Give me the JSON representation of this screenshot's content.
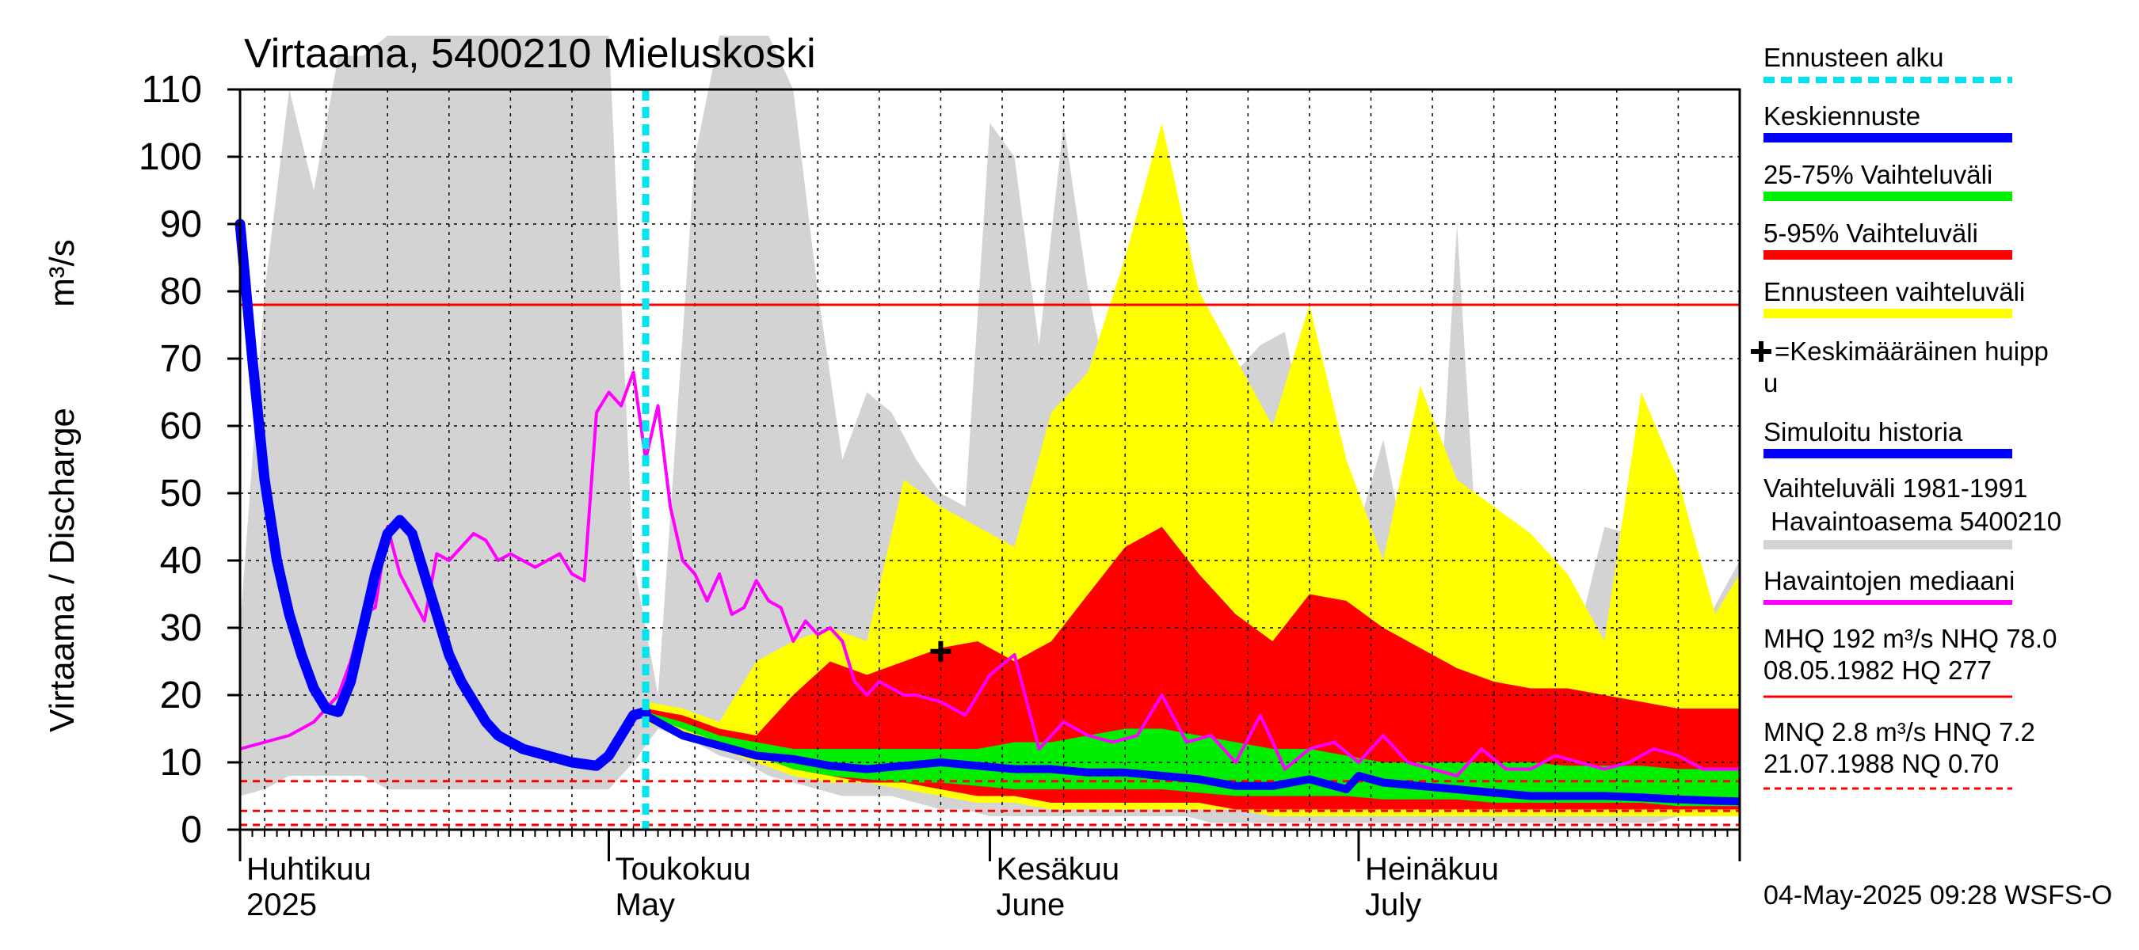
{
  "chart_data": {
    "type": "area",
    "title": "Virtaama, 5400210 Mieluskoski",
    "ylabel": "Virtaama / Discharge",
    "yunit": "m³/s",
    "ylim": [
      0,
      110
    ],
    "yticks": [
      0,
      10,
      20,
      30,
      40,
      50,
      60,
      70,
      80,
      90,
      100,
      110
    ],
    "xlim": [
      "2025-04-01",
      "2025-08-01"
    ],
    "grid": true,
    "month_labels": [
      {
        "date": "2025-04-01",
        "fi": "Huhtikuu",
        "en": "2025"
      },
      {
        "date": "2025-05-01",
        "fi": "Toukokuu",
        "en": "May"
      },
      {
        "date": "2025-06-01",
        "fi": "Kesäkuu",
        "en": "June"
      },
      {
        "date": "2025-07-01",
        "fi": "Heinäkuu",
        "en": "July"
      }
    ],
    "forecast_start": "2025-05-04",
    "mean_peak_marker": {
      "date": "2025-05-28",
      "value": 26.5
    },
    "reference_lines": [
      {
        "name": "NHQ",
        "value": 78.0,
        "style": "solid"
      },
      {
        "name": "HNQ",
        "value": 7.2,
        "style": "dashed"
      },
      {
        "name": "MNQ",
        "value": 2.8,
        "style": "dashed"
      },
      {
        "name": "NQ",
        "value": 0.7,
        "style": "dashed"
      }
    ],
    "history_range": {
      "name": "Vaihteluväli 1981-1991 Havaintoasema 5400210",
      "x": [
        "2025-04-01",
        "2025-04-03",
        "2025-04-05",
        "2025-04-07",
        "2025-04-09",
        "2025-04-11",
        "2025-04-13",
        "2025-04-15",
        "2025-04-17",
        "2025-04-19",
        "2025-04-21",
        "2025-04-25",
        "2025-04-28",
        "2025-05-01",
        "2025-05-03",
        "2025-05-05",
        "2025-05-08",
        "2025-05-10",
        "2025-05-12",
        "2025-05-14",
        "2025-05-16",
        "2025-05-18",
        "2025-05-20",
        "2025-05-22",
        "2025-05-24",
        "2025-05-26",
        "2025-05-28",
        "2025-05-30",
        "2025-06-01",
        "2025-06-03",
        "2025-06-05",
        "2025-06-07",
        "2025-06-09",
        "2025-06-11",
        "2025-06-13",
        "2025-06-15",
        "2025-06-17",
        "2025-06-19",
        "2025-06-21",
        "2025-06-23",
        "2025-06-25",
        "2025-06-27",
        "2025-06-29",
        "2025-07-01",
        "2025-07-03",
        "2025-07-05",
        "2025-07-07",
        "2025-07-09",
        "2025-07-11",
        "2025-07-13",
        "2025-07-15",
        "2025-07-17",
        "2025-07-19",
        "2025-07-21",
        "2025-07-23",
        "2025-07-25",
        "2025-07-27",
        "2025-07-29",
        "2025-08-01"
      ],
      "low": [
        5,
        6,
        8,
        8,
        8,
        8,
        6,
        6,
        6,
        6,
        6,
        6,
        6,
        6,
        10,
        15,
        13,
        11,
        10,
        8,
        7,
        6,
        5,
        5,
        5,
        4,
        3,
        3,
        2,
        2,
        2,
        2,
        2,
        2,
        2,
        2,
        2,
        1,
        1,
        1,
        1,
        1,
        1,
        1,
        1,
        1,
        1,
        1,
        1,
        1,
        1,
        1,
        1,
        1,
        1,
        1,
        2,
        2,
        2
      ],
      "high": [
        30,
        80,
        110,
        95,
        115,
        115,
        118,
        118,
        118,
        118,
        118,
        118,
        118,
        118,
        40,
        20,
        100,
        118,
        118,
        118,
        110,
        80,
        55,
        65,
        62,
        55,
        50,
        48,
        105,
        100,
        72,
        105,
        80,
        62,
        55,
        70,
        70,
        62,
        68,
        72,
        74,
        55,
        20,
        45,
        58,
        40,
        28,
        90,
        30,
        35,
        30,
        22,
        30,
        45,
        44,
        20,
        22,
        30,
        40
      ]
    },
    "series": [
      {
        "name": "Ennusteen vaihteluväli",
        "x": [
          "2025-05-04",
          "2025-05-07",
          "2025-05-10",
          "2025-05-13",
          "2025-05-16",
          "2025-05-19",
          "2025-05-22",
          "2025-05-25",
          "2025-05-28",
          "2025-05-31",
          "2025-06-03",
          "2025-06-06",
          "2025-06-09",
          "2025-06-12",
          "2025-06-15",
          "2025-06-18",
          "2025-06-21",
          "2025-06-24",
          "2025-06-27",
          "2025-06-30",
          "2025-07-03",
          "2025-07-06",
          "2025-07-09",
          "2025-07-12",
          "2025-07-15",
          "2025-07-18",
          "2025-07-21",
          "2025-07-24",
          "2025-07-27",
          "2025-07-30",
          "2025-08-01"
        ],
        "low": [
          16,
          14,
          12,
          10,
          8,
          7,
          7,
          6,
          5,
          4,
          4,
          3,
          3,
          3,
          3,
          3,
          3,
          2,
          2,
          2,
          2,
          2,
          2,
          2,
          2,
          2,
          2,
          2,
          2,
          2,
          2
        ],
        "high": [
          19,
          18,
          16,
          25,
          28,
          30,
          28,
          52,
          48,
          45,
          42,
          62,
          68,
          85,
          105,
          80,
          70,
          60,
          78,
          55,
          40,
          66,
          52,
          48,
          44,
          38,
          28,
          65,
          52,
          32,
          38
        ]
      },
      {
        "name": "5-95% Vaihteluväli",
        "x": [
          "2025-05-04",
          "2025-05-07",
          "2025-05-10",
          "2025-05-13",
          "2025-05-16",
          "2025-05-19",
          "2025-05-22",
          "2025-05-25",
          "2025-05-28",
          "2025-05-31",
          "2025-06-03",
          "2025-06-06",
          "2025-06-09",
          "2025-06-12",
          "2025-06-15",
          "2025-06-18",
          "2025-06-21",
          "2025-06-24",
          "2025-06-27",
          "2025-06-30",
          "2025-07-03",
          "2025-07-06",
          "2025-07-09",
          "2025-07-12",
          "2025-07-15",
          "2025-07-18",
          "2025-07-21",
          "2025-07-24",
          "2025-07-27",
          "2025-07-30",
          "2025-08-01"
        ],
        "low": [
          17,
          15,
          13,
          11,
          9,
          8,
          7,
          7,
          6,
          5,
          5,
          4,
          4,
          4,
          4,
          4,
          3,
          3,
          3,
          3,
          3,
          3,
          3,
          3,
          3,
          3,
          3,
          3,
          3,
          3,
          3
        ],
        "high": [
          18,
          17,
          15,
          14,
          20,
          25,
          23,
          25,
          27,
          28,
          25,
          28,
          35,
          42,
          45,
          38,
          32,
          28,
          35,
          34,
          30,
          27,
          24,
          22,
          21,
          21,
          20,
          19,
          18,
          18,
          18
        ]
      },
      {
        "name": "25-75% Vaihteluväli",
        "x": [
          "2025-05-04",
          "2025-05-07",
          "2025-05-10",
          "2025-05-13",
          "2025-05-16",
          "2025-05-19",
          "2025-05-22",
          "2025-05-25",
          "2025-05-28",
          "2025-05-31",
          "2025-06-03",
          "2025-06-06",
          "2025-06-09",
          "2025-06-12",
          "2025-06-15",
          "2025-06-18",
          "2025-06-21",
          "2025-06-24",
          "2025-06-27",
          "2025-06-30",
          "2025-07-03",
          "2025-07-06",
          "2025-07-09",
          "2025-07-12",
          "2025-07-15",
          "2025-07-18",
          "2025-07-21",
          "2025-07-24",
          "2025-07-27",
          "2025-07-30",
          "2025-08-01"
        ],
        "low": [
          17,
          15,
          13,
          11,
          9,
          8,
          7.5,
          7,
          7,
          6.5,
          6,
          6,
          6,
          6,
          6,
          5.5,
          5,
          5,
          5,
          5,
          4.5,
          4.5,
          4.5,
          4,
          4,
          4,
          4,
          4,
          3.5,
          3.5,
          3.5
        ],
        "high": [
          17.5,
          16,
          14,
          13,
          12,
          12,
          12,
          12,
          12,
          12,
          13,
          13,
          14,
          15,
          15,
          14,
          13,
          12,
          12,
          11,
          10,
          10,
          10,
          10,
          10,
          9.5,
          9.5,
          9.5,
          9,
          9,
          9
        ]
      },
      {
        "name": "Keskiennuste",
        "x": [
          "2025-05-04",
          "2025-05-07",
          "2025-05-10",
          "2025-05-13",
          "2025-05-16",
          "2025-05-19",
          "2025-05-22",
          "2025-05-25",
          "2025-05-28",
          "2025-05-31",
          "2025-06-03",
          "2025-06-06",
          "2025-06-09",
          "2025-06-12",
          "2025-06-15",
          "2025-06-18",
          "2025-06-21",
          "2025-06-24",
          "2025-06-27",
          "2025-06-30",
          "2025-07-01",
          "2025-07-03",
          "2025-07-06",
          "2025-07-09",
          "2025-07-12",
          "2025-07-15",
          "2025-07-18",
          "2025-07-21",
          "2025-07-24",
          "2025-07-27",
          "2025-07-30",
          "2025-08-01"
        ],
        "values": [
          17,
          14,
          12.5,
          11,
          10.5,
          9.5,
          9,
          9.5,
          10,
          9.5,
          9,
          9,
          8.5,
          8.5,
          8,
          7.5,
          6.5,
          6.5,
          7.5,
          6,
          8,
          7,
          6.5,
          6,
          5.5,
          5,
          5,
          5,
          4.8,
          4.5,
          4.3,
          4.2
        ]
      },
      {
        "name": "Simuloitu historia",
        "x": [
          "2025-04-01",
          "2025-04-02",
          "2025-04-03",
          "2025-04-04",
          "2025-04-05",
          "2025-04-06",
          "2025-04-07",
          "2025-04-08",
          "2025-04-09",
          "2025-04-10",
          "2025-04-11",
          "2025-04-12",
          "2025-04-13",
          "2025-04-14",
          "2025-04-15",
          "2025-04-16",
          "2025-04-17",
          "2025-04-18",
          "2025-04-19",
          "2025-04-20",
          "2025-04-21",
          "2025-04-22",
          "2025-04-24",
          "2025-04-26",
          "2025-04-28",
          "2025-04-30",
          "2025-05-01",
          "2025-05-02",
          "2025-05-03",
          "2025-05-04"
        ],
        "values": [
          90,
          70,
          52,
          40,
          32,
          26,
          21,
          18,
          17.5,
          22,
          30,
          38,
          44,
          46,
          44,
          38,
          32,
          26,
          22,
          19,
          16,
          14,
          12,
          11,
          10,
          9.5,
          11,
          14,
          17,
          17.5
        ]
      },
      {
        "name": "Havaintojen mediaani",
        "x": [
          "2025-04-01",
          "2025-04-03",
          "2025-04-05",
          "2025-04-07",
          "2025-04-09",
          "2025-04-10",
          "2025-04-11",
          "2025-04-12",
          "2025-04-13",
          "2025-04-14",
          "2025-04-16",
          "2025-04-17",
          "2025-04-18",
          "2025-04-20",
          "2025-04-21",
          "2025-04-22",
          "2025-04-23",
          "2025-04-25",
          "2025-04-27",
          "2025-04-28",
          "2025-04-29",
          "2025-04-30",
          "2025-05-01",
          "2025-05-02",
          "2025-05-03",
          "2025-05-04",
          "2025-05-05",
          "2025-05-06",
          "2025-05-07",
          "2025-05-08",
          "2025-05-09",
          "2025-05-10",
          "2025-05-11",
          "2025-05-12",
          "2025-05-13",
          "2025-05-14",
          "2025-05-15",
          "2025-05-16",
          "2025-05-17",
          "2025-05-18",
          "2025-05-19",
          "2025-05-20",
          "2025-05-21",
          "2025-05-22",
          "2025-05-23",
          "2025-05-24",
          "2025-05-25",
          "2025-05-26",
          "2025-05-28",
          "2025-05-30",
          "2025-06-01",
          "2025-06-03",
          "2025-06-05",
          "2025-06-07",
          "2025-06-09",
          "2025-06-11",
          "2025-06-13",
          "2025-06-15",
          "2025-06-17",
          "2025-06-19",
          "2025-06-21",
          "2025-06-23",
          "2025-06-25",
          "2025-06-27",
          "2025-06-29",
          "2025-07-01",
          "2025-07-03",
          "2025-07-05",
          "2025-07-07",
          "2025-07-09",
          "2025-07-11",
          "2025-07-13",
          "2025-07-15",
          "2025-07-17",
          "2025-07-19",
          "2025-07-21",
          "2025-07-23",
          "2025-07-25",
          "2025-07-27",
          "2025-07-29",
          "2025-08-01"
        ],
        "values": [
          12,
          13,
          14,
          16,
          20,
          25,
          32,
          33,
          45,
          38,
          31,
          41,
          40,
          44,
          43,
          40,
          41,
          39,
          41,
          38,
          37,
          62,
          65,
          63,
          68,
          55,
          63,
          48,
          40,
          38,
          34,
          38,
          32,
          33,
          37,
          34,
          33,
          28,
          31,
          29,
          30,
          28,
          22,
          20,
          22,
          21,
          20,
          20,
          19,
          17,
          23,
          26,
          12,
          16,
          14,
          13,
          14,
          20,
          13,
          14,
          10,
          17,
          9,
          12,
          13,
          10,
          14,
          10,
          9,
          8,
          12,
          9,
          9,
          11,
          10,
          9,
          10,
          12,
          11,
          9,
          9
        ]
      }
    ]
  },
  "legend": {
    "ennusteen_alku": "Ennusteen alku",
    "keskiennuste": "Keskiennuste",
    "vaihteluvali_25_75": "25-75% Vaihteluväli",
    "vaihteluvali_5_95": "5-95% Vaihteluväli",
    "ennusteen_vaihteluvali": "Ennusteen vaihteluväli",
    "keskimaarainen_huippu_1": "=Keskimääräinen huipp",
    "keskimaarainen_huippu_2": "u",
    "simuloitu_historia": "Simuloitu historia",
    "vaihteluvali_1": "Vaihteluväli 1981-1991",
    "vaihteluvali_2": " Havaintoasema 5400210",
    "havaintojen_mediaani": "Havaintojen mediaani",
    "stats_1a": "MHQ  192 m³/s NHQ 78.0",
    "stats_1b": "08.05.1982 HQ  277",
    "stats_2a": "MNQ  2.8 m³/s HNQ  7.2",
    "stats_2b": "21.07.1988 NQ 0.70"
  },
  "footer": "04-May-2025 09:28 WSFS-O",
  "colors": {
    "history": "#d3d3d3",
    "forecast_range": "#ffff00",
    "p5_95": "#ff0000",
    "p25_75": "#00ee00",
    "mean_forecast": "#0000ff",
    "median": "#ff00ff",
    "forecast_start": "#00e5ee",
    "reference": "#ff0000"
  }
}
